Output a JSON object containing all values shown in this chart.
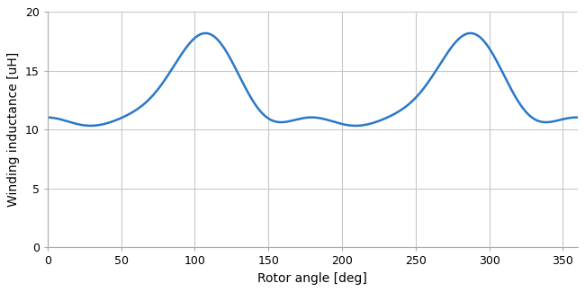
{
  "xlabel": "Rotor angle [deg]",
  "ylabel": "Winding inductance [uH]",
  "xlim": [
    0,
    360
  ],
  "ylim": [
    0,
    20
  ],
  "xticks": [
    0,
    50,
    100,
    150,
    200,
    250,
    300,
    350
  ],
  "yticks": [
    0,
    5,
    10,
    15,
    20
  ],
  "line_color": "#2878c8",
  "line_width": 1.8,
  "background_color": "#ffffff",
  "grid_color": "#c8c8c8",
  "curve": {
    "L0": 12.85,
    "A1": 3.4,
    "phi1_deg": 210,
    "A2": 1.55,
    "phi2_deg": 60,
    "A3": 0.5,
    "phi3_deg": 315
  }
}
